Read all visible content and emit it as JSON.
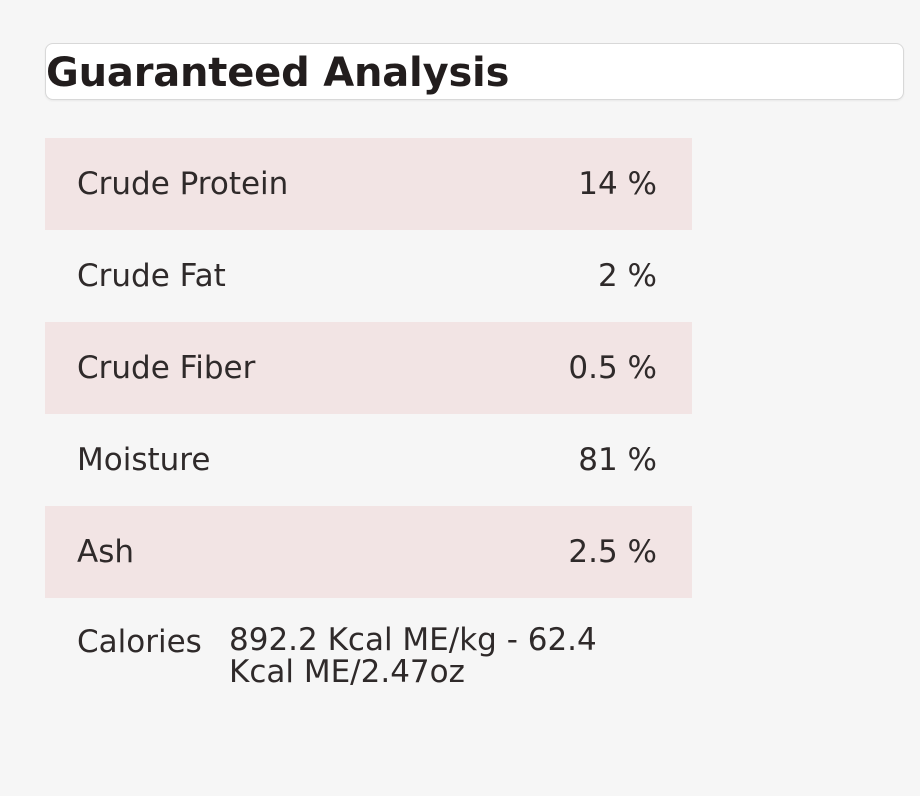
{
  "header": {
    "title": "Guaranteed Analysis"
  },
  "analysis": {
    "rows": [
      {
        "label": "Crude Protein",
        "value": "14 %"
      },
      {
        "label": "Crude Fat",
        "value": "2 %"
      },
      {
        "label": "Crude Fiber",
        "value": "0.5 %"
      },
      {
        "label": "Moisture",
        "value": "81 %"
      },
      {
        "label": "Ash",
        "value": "2.5 %"
      }
    ]
  },
  "calories": {
    "label": "Calories",
    "value": "892.2 Kcal ME/kg - 62.4 Kcal ME/2.47oz"
  },
  "colors": {
    "background": "#f6f6f6",
    "row_shade": "#f2e4e4",
    "text": "#2f2a2a"
  }
}
